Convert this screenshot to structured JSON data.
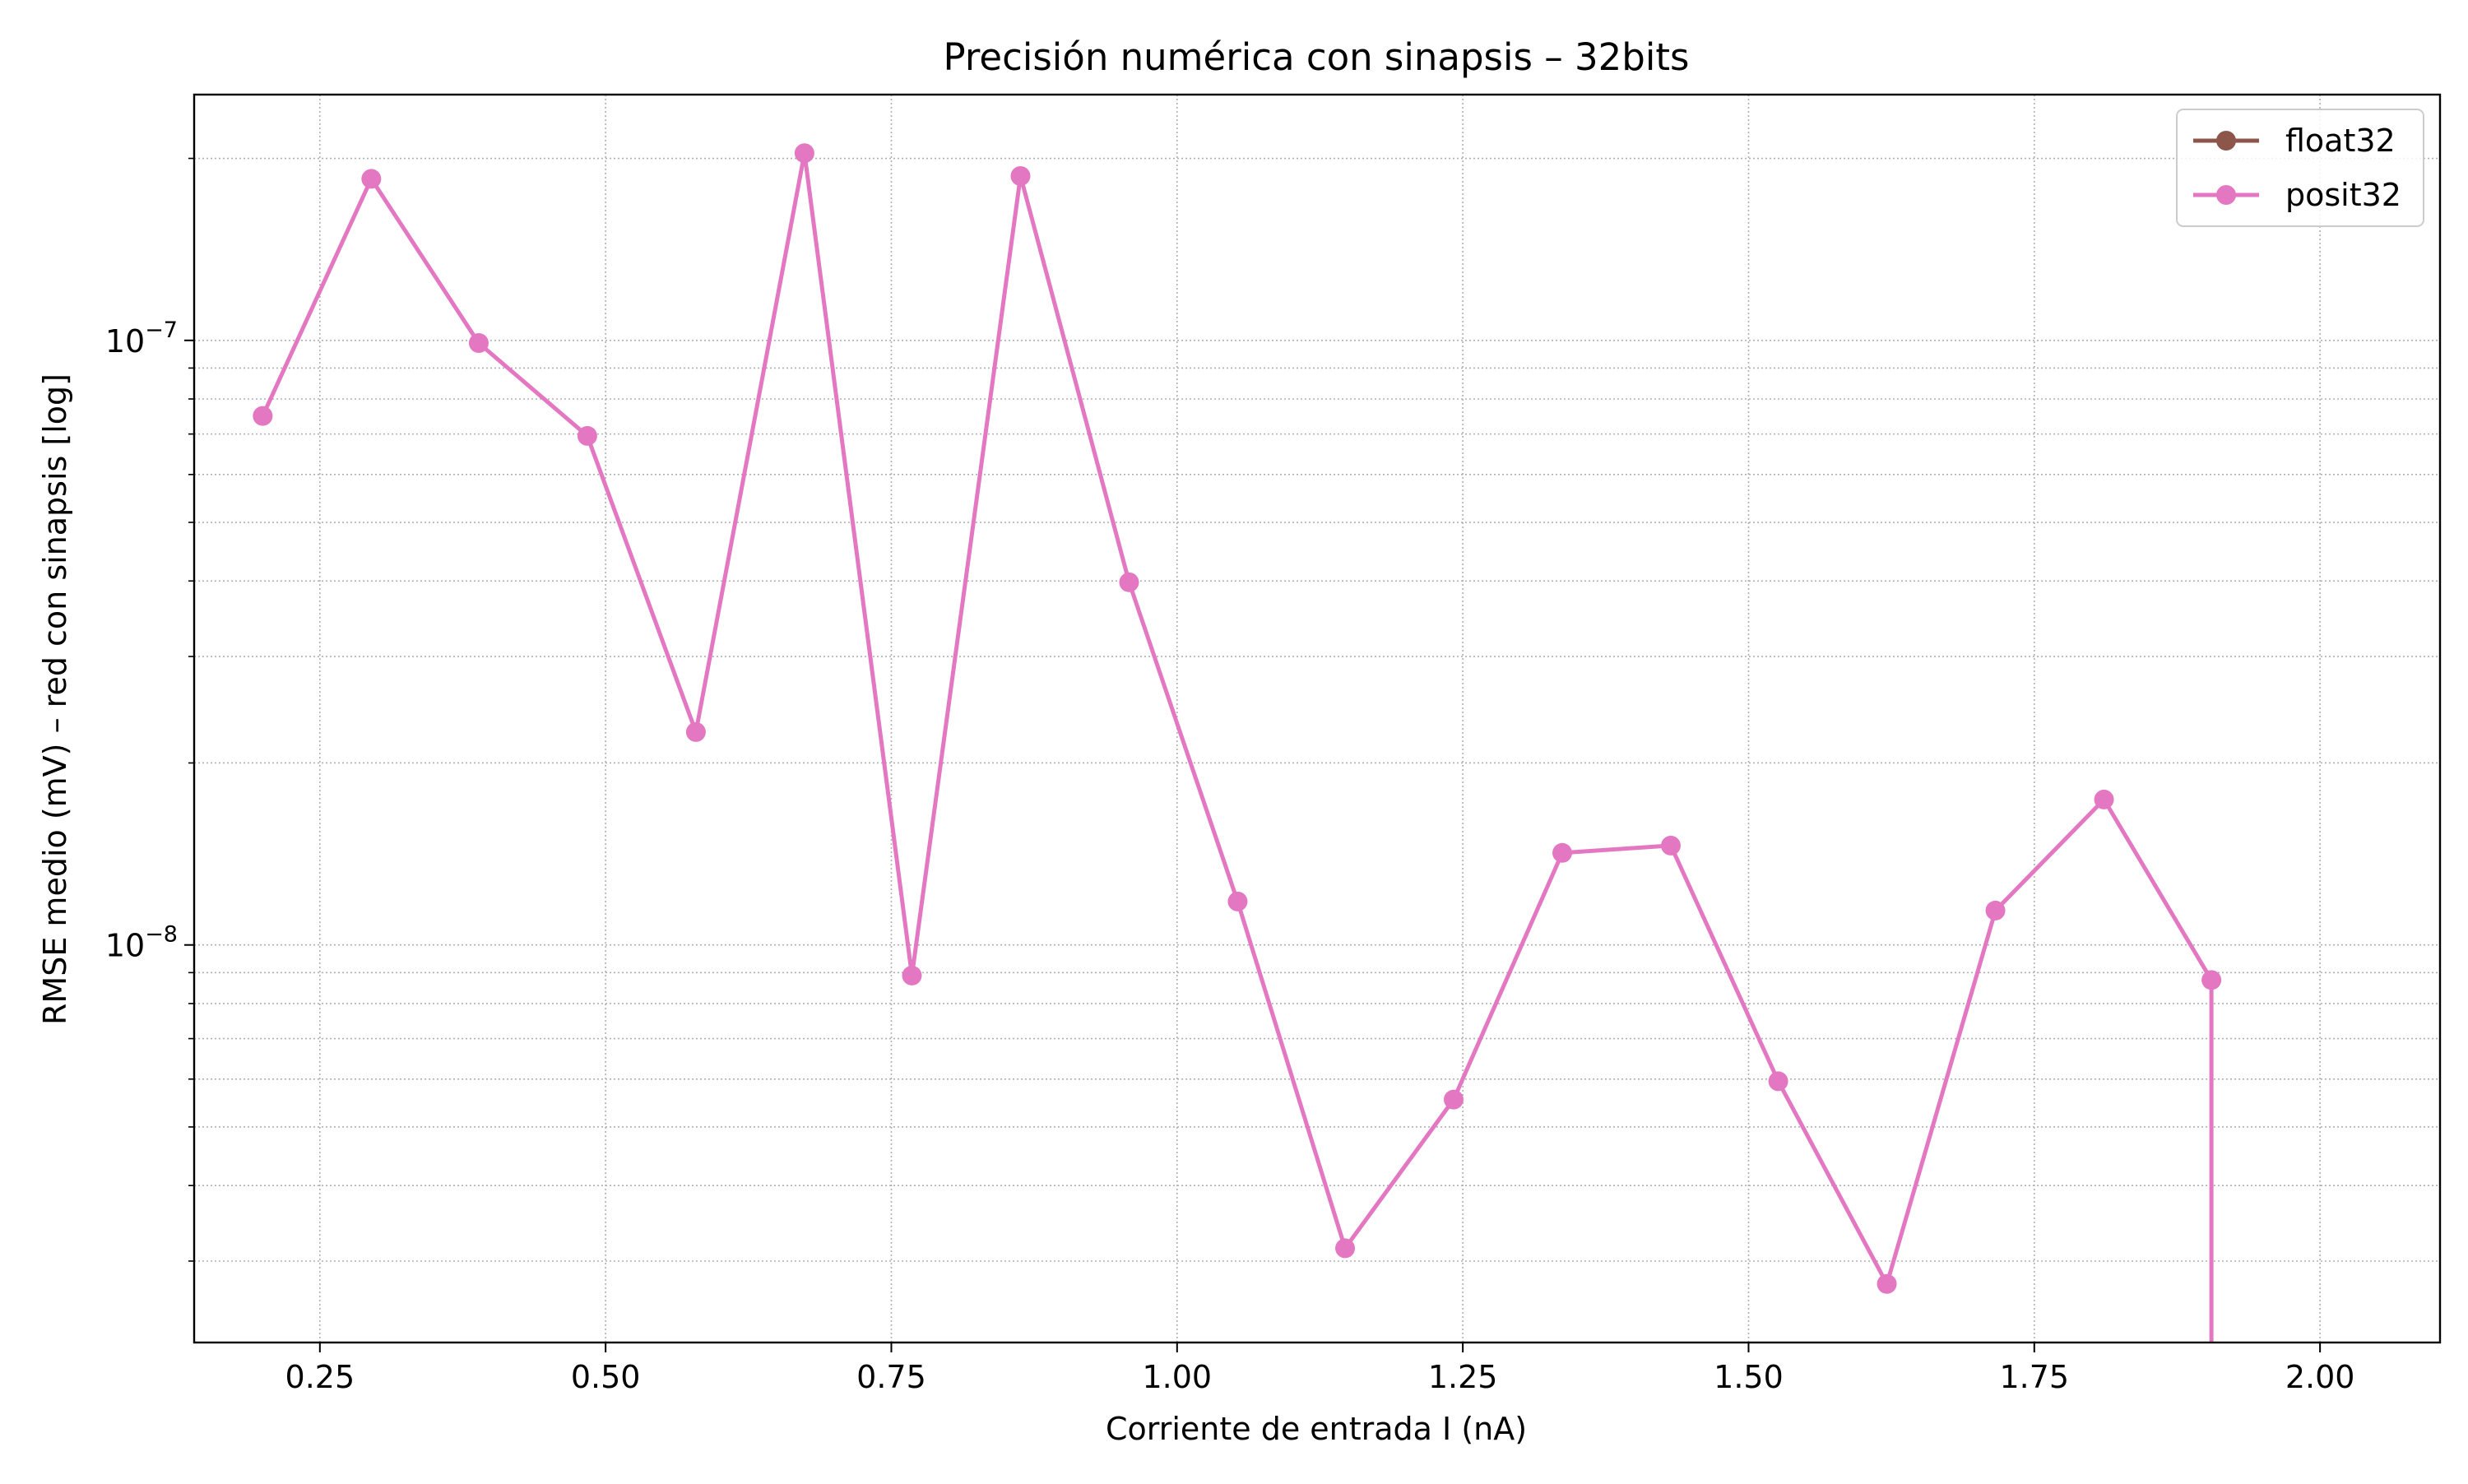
{
  "chart_data": {
    "type": "line",
    "title": "Precisión numérica con sinapsis – 32bits",
    "xlabel": "Corriente de entrada I (nA)",
    "ylabel": "RMSE medio (mV) – red con sinapsis [log]",
    "xlim": [
      0.14,
      2.105
    ],
    "ylim": [
      2.2e-09,
      2.55e-07
    ],
    "yscale": "log",
    "grid": true,
    "legend_position": "top-right",
    "x_ticks": [
      {
        "value": 0.25,
        "label": "0.25"
      },
      {
        "value": 0.5,
        "label": "0.50"
      },
      {
        "value": 0.75,
        "label": "0.75"
      },
      {
        "value": 1.0,
        "label": "1.00"
      },
      {
        "value": 1.25,
        "label": "1.25"
      },
      {
        "value": 1.5,
        "label": "1.50"
      },
      {
        "value": 1.75,
        "label": "1.75"
      },
      {
        "value": 2.0,
        "label": "2.00"
      }
    ],
    "y_major_ticks": [
      {
        "value": 1e-07,
        "base": "10",
        "exp": "−7"
      },
      {
        "value": 1e-08,
        "base": "10",
        "exp": "−8"
      }
    ],
    "y_minor_ticks": [
      3e-09,
      4e-09,
      5e-09,
      6e-09,
      7e-09,
      8e-09,
      9e-09,
      2e-08,
      3e-08,
      4e-08,
      5e-08,
      6e-08,
      7e-08,
      8e-08,
      9e-08,
      2e-07
    ],
    "series": [
      {
        "name": "float32",
        "color": "#8c564b",
        "x": [],
        "y": []
      },
      {
        "name": "posit32",
        "color": "#e377c2",
        "x": [
          0.2,
          0.295,
          0.389,
          0.484,
          0.579,
          0.674,
          0.768,
          0.863,
          0.958,
          1.053,
          1.147,
          1.242,
          1.337,
          1.432,
          1.526,
          1.621,
          1.716,
          1.811,
          1.905
        ],
        "y": [
          7.5e-08,
          1.85e-07,
          9.9e-08,
          6.95e-08,
          2.25e-08,
          2.04e-07,
          8.9e-09,
          1.87e-07,
          3.98e-08,
          1.18e-08,
          3.15e-09,
          5.55e-09,
          1.42e-08,
          1.46e-08,
          5.95e-09,
          2.75e-09,
          1.14e-08,
          1.74e-08,
          8.75e-09
        ],
        "trailing_drop_to_bottom": true
      }
    ]
  }
}
